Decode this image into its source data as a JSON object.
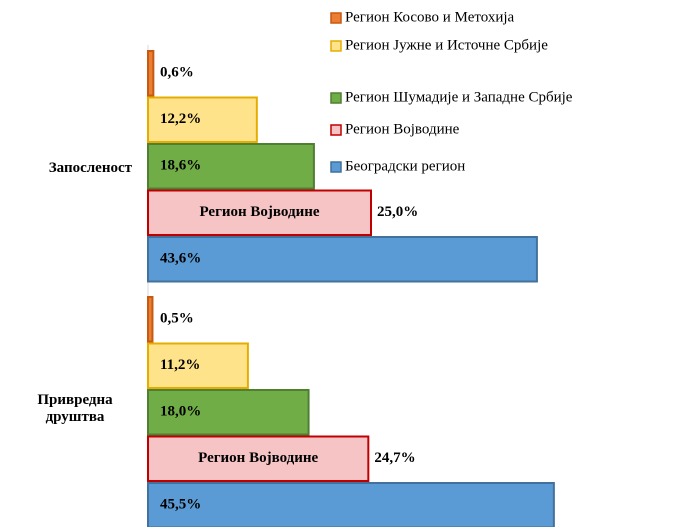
{
  "chart_data": {
    "type": "barh",
    "categories": [
      "Запосленост",
      "Привредна друштва"
    ],
    "series": [
      {
        "name": "Регион Косово и Метохија",
        "color": "#ed7d31",
        "edgecolor": "#c55a11",
        "values": [
          0.6,
          0.5
        ],
        "value_labels": [
          "0,6%",
          "0,5%"
        ]
      },
      {
        "name": "Регион Јужне и Источне Србије",
        "color": "#ffe38a",
        "edgecolor": "#e6ac00",
        "values": [
          12.2,
          11.2
        ],
        "value_labels": [
          "12,2%",
          "11,2%"
        ]
      },
      {
        "name": "Регион Шумадије и Западне Србије",
        "color": "#70ad47",
        "edgecolor": "#507e32",
        "values": [
          18.6,
          18.0
        ],
        "value_labels": [
          "18,6%",
          "18,0%"
        ]
      },
      {
        "name": "Регион Војводине",
        "color": "#f6c4c4",
        "edgecolor": "#c00000",
        "values": [
          25.0,
          24.7
        ],
        "value_labels": [
          "25,0%",
          "24,7%"
        ]
      },
      {
        "name": "Београдски регион",
        "color": "#5b9bd5",
        "edgecolor": "#41719c",
        "values": [
          43.6,
          45.5
        ],
        "value_labels": [
          "43,6%",
          "45,5%"
        ]
      }
    ],
    "xlim": [
      0,
      50
    ]
  }
}
